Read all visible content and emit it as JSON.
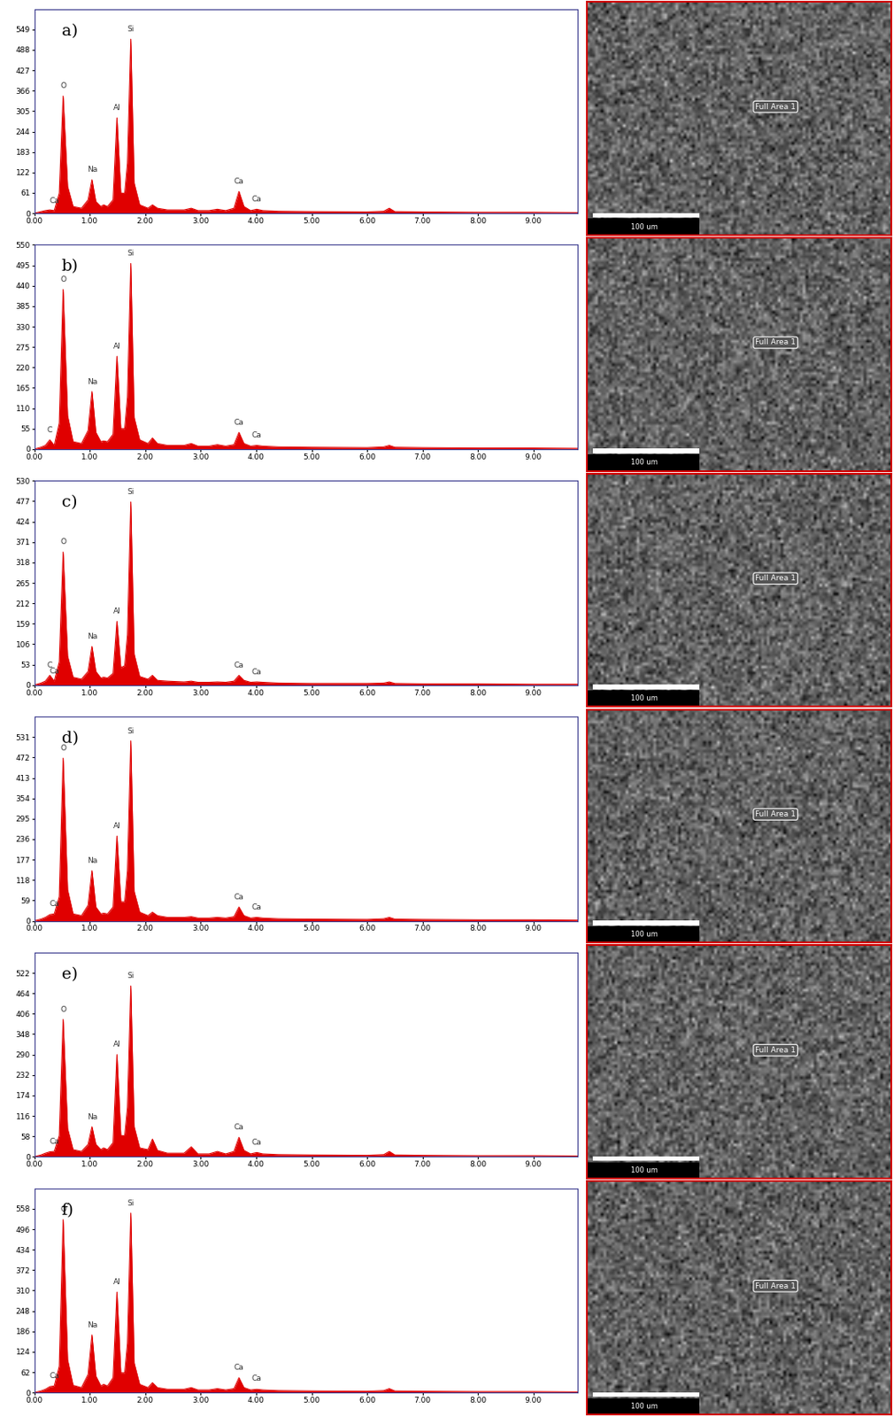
{
  "chart_data": [
    {
      "type": "area",
      "title": "a)",
      "color": "#e00000",
      "x": [
        0.0,
        0.12,
        0.2,
        0.28,
        0.36,
        0.45,
        0.52,
        0.6,
        0.7,
        0.85,
        0.97,
        1.04,
        1.11,
        1.2,
        1.25,
        1.32,
        1.42,
        1.49,
        1.56,
        1.63,
        1.68,
        1.74,
        1.8,
        1.9,
        2.05,
        2.13,
        2.22,
        2.4,
        2.7,
        2.83,
        2.95,
        3.15,
        3.3,
        3.45,
        3.6,
        3.69,
        3.78,
        3.9,
        4.01,
        4.12,
        4.4,
        5.0,
        6.0,
        6.3,
        6.4,
        6.5,
        7.0,
        8.0,
        9.0,
        9.8
      ],
      "values": [
        0,
        5,
        8,
        10,
        8,
        60,
        350,
        80,
        20,
        15,
        40,
        100,
        35,
        20,
        25,
        20,
        40,
        285,
        60,
        60,
        150,
        520,
        90,
        25,
        15,
        25,
        15,
        10,
        10,
        15,
        8,
        8,
        12,
        8,
        15,
        65,
        20,
        8,
        12,
        8,
        6,
        5,
        4,
        6,
        15,
        5,
        4,
        3,
        3,
        2
      ],
      "peaks": [
        {
          "label": "Ca",
          "x": 0.36,
          "value": 8
        },
        {
          "label": "O",
          "x": 0.52,
          "value": 350
        },
        {
          "label": "Na",
          "x": 1.04,
          "value": 100
        },
        {
          "label": "Al",
          "x": 1.49,
          "value": 285
        },
        {
          "label": "Si",
          "x": 1.74,
          "value": 520
        },
        {
          "label": "Ca",
          "x": 3.69,
          "value": 65
        },
        {
          "label": "Ca",
          "x": 4.01,
          "value": 12
        }
      ],
      "xlim": [
        0,
        9.8
      ],
      "ylim": [
        0,
        610
      ],
      "xticks": [
        {
          "value": 0,
          "label": "0.00"
        },
        {
          "value": 1,
          "label": "1.00"
        },
        {
          "value": 2,
          "label": "2.00"
        },
        {
          "value": 3,
          "label": "3.00"
        },
        {
          "value": 4,
          "label": "4.00"
        },
        {
          "value": 5,
          "label": "5.00"
        },
        {
          "value": 6,
          "label": "6.00"
        },
        {
          "value": 7,
          "label": "7.00"
        },
        {
          "value": 8,
          "label": "8.00"
        },
        {
          "value": 9,
          "label": "9.00"
        }
      ],
      "yticks": [
        0,
        61,
        122,
        183,
        244,
        305,
        366,
        427,
        488,
        549
      ]
    },
    {
      "type": "area",
      "title": "b)",
      "color": "#e00000",
      "x": [
        0.0,
        0.12,
        0.2,
        0.28,
        0.36,
        0.45,
        0.52,
        0.6,
        0.7,
        0.85,
        0.97,
        1.04,
        1.11,
        1.2,
        1.25,
        1.32,
        1.42,
        1.49,
        1.56,
        1.63,
        1.68,
        1.74,
        1.8,
        1.9,
        2.05,
        2.13,
        2.22,
        2.4,
        2.7,
        2.83,
        2.95,
        3.15,
        3.3,
        3.45,
        3.6,
        3.69,
        3.78,
        3.9,
        4.01,
        4.12,
        4.4,
        5.0,
        6.0,
        6.3,
        6.4,
        6.5,
        7.0,
        8.0,
        9.0,
        9.8
      ],
      "values": [
        0,
        5,
        10,
        25,
        10,
        70,
        430,
        90,
        20,
        15,
        50,
        155,
        45,
        20,
        22,
        20,
        40,
        250,
        55,
        55,
        140,
        500,
        85,
        25,
        15,
        30,
        15,
        10,
        10,
        15,
        8,
        8,
        12,
        8,
        12,
        45,
        15,
        8,
        10,
        8,
        6,
        5,
        4,
        6,
        10,
        5,
        4,
        3,
        3,
        2
      ],
      "peaks": [
        {
          "label": "C",
          "x": 0.28,
          "value": 25
        },
        {
          "label": "O",
          "x": 0.52,
          "value": 430
        },
        {
          "label": "Na",
          "x": 1.04,
          "value": 155
        },
        {
          "label": "Al",
          "x": 1.49,
          "value": 250
        },
        {
          "label": "Si",
          "x": 1.74,
          "value": 500
        },
        {
          "label": "Ca",
          "x": 3.69,
          "value": 45
        },
        {
          "label": "Ca",
          "x": 4.01,
          "value": 10
        }
      ],
      "xlim": [
        0,
        9.8
      ],
      "ylim": [
        0,
        550
      ],
      "xticks": [
        {
          "value": 0,
          "label": "0.00"
        },
        {
          "value": 1,
          "label": "1.00"
        },
        {
          "value": 2,
          "label": "2.00"
        },
        {
          "value": 3,
          "label": "3.00"
        },
        {
          "value": 4,
          "label": "4.00"
        },
        {
          "value": 5,
          "label": "5.00"
        },
        {
          "value": 6,
          "label": "6.00"
        },
        {
          "value": 7,
          "label": "7.00"
        },
        {
          "value": 8,
          "label": "8.00"
        },
        {
          "value": 9,
          "label": "9.00"
        }
      ],
      "yticks": [
        0,
        55,
        110,
        165,
        220,
        275,
        330,
        385,
        440,
        495,
        550
      ]
    },
    {
      "type": "area",
      "title": "c)",
      "color": "#e00000",
      "x": [
        0.0,
        0.12,
        0.2,
        0.28,
        0.36,
        0.45,
        0.52,
        0.6,
        0.7,
        0.85,
        0.97,
        1.04,
        1.11,
        1.2,
        1.25,
        1.32,
        1.42,
        1.49,
        1.56,
        1.63,
        1.68,
        1.74,
        1.8,
        1.9,
        2.05,
        2.13,
        2.22,
        2.4,
        2.7,
        2.83,
        2.95,
        3.15,
        3.3,
        3.45,
        3.6,
        3.69,
        3.78,
        3.9,
        4.01,
        4.12,
        4.4,
        5.0,
        6.0,
        6.3,
        6.4,
        6.5,
        7.0,
        8.0,
        9.0,
        9.8
      ],
      "values": [
        0,
        5,
        10,
        25,
        10,
        60,
        345,
        75,
        20,
        15,
        35,
        100,
        35,
        18,
        20,
        18,
        30,
        165,
        45,
        50,
        130,
        475,
        80,
        22,
        15,
        25,
        12,
        10,
        8,
        10,
        7,
        7,
        8,
        7,
        10,
        25,
        12,
        7,
        8,
        7,
        5,
        4,
        4,
        5,
        8,
        4,
        3,
        3,
        2,
        2
      ],
      "peaks": [
        {
          "label": "C",
          "x": 0.28,
          "value": 25
        },
        {
          "label": "Ca",
          "x": 0.36,
          "value": 10
        },
        {
          "label": "O",
          "x": 0.52,
          "value": 345
        },
        {
          "label": "Na",
          "x": 1.04,
          "value": 100
        },
        {
          "label": "Al",
          "x": 1.49,
          "value": 165
        },
        {
          "label": "Si",
          "x": 1.74,
          "value": 475
        },
        {
          "label": "Ca",
          "x": 3.69,
          "value": 25
        },
        {
          "label": "Ca",
          "x": 4.01,
          "value": 8
        }
      ],
      "xlim": [
        0,
        9.8
      ],
      "ylim": [
        0,
        530
      ],
      "xticks": [
        {
          "value": 0,
          "label": "0.00"
        },
        {
          "value": 1,
          "label": "1.00"
        },
        {
          "value": 2,
          "label": "2.00"
        },
        {
          "value": 3,
          "label": "3.00"
        },
        {
          "value": 4,
          "label": "4.00"
        },
        {
          "value": 5,
          "label": "5.00"
        },
        {
          "value": 6,
          "label": "6.00"
        },
        {
          "value": 7,
          "label": "7.00"
        },
        {
          "value": 8,
          "label": "8.00"
        },
        {
          "value": 9,
          "label": "9.00"
        }
      ],
      "yticks": [
        0,
        53,
        106,
        159,
        212,
        265,
        318,
        371,
        424,
        477,
        530
      ]
    },
    {
      "type": "area",
      "title": "d)",
      "color": "#e00000",
      "x": [
        0.0,
        0.12,
        0.2,
        0.28,
        0.36,
        0.45,
        0.52,
        0.6,
        0.7,
        0.85,
        0.97,
        1.04,
        1.11,
        1.2,
        1.25,
        1.32,
        1.42,
        1.49,
        1.56,
        1.63,
        1.68,
        1.74,
        1.8,
        1.9,
        2.05,
        2.13,
        2.22,
        2.4,
        2.7,
        2.83,
        2.95,
        3.15,
        3.3,
        3.45,
        3.6,
        3.69,
        3.78,
        3.9,
        4.01,
        4.12,
        4.4,
        5.0,
        6.0,
        6.3,
        6.4,
        6.5,
        7.0,
        8.0,
        9.0,
        9.8
      ],
      "values": [
        0,
        5,
        10,
        18,
        20,
        70,
        470,
        90,
        20,
        15,
        45,
        145,
        40,
        20,
        22,
        20,
        40,
        245,
        55,
        55,
        145,
        520,
        85,
        25,
        15,
        25,
        15,
        10,
        10,
        12,
        8,
        8,
        10,
        8,
        12,
        40,
        15,
        8,
        10,
        8,
        6,
        5,
        4,
        6,
        10,
        5,
        4,
        3,
        3,
        2
      ],
      "peaks": [
        {
          "label": "Ca",
          "x": 0.36,
          "value": 20
        },
        {
          "label": "O",
          "x": 0.52,
          "value": 470
        },
        {
          "label": "Na",
          "x": 1.04,
          "value": 145
        },
        {
          "label": "Al",
          "x": 1.49,
          "value": 245
        },
        {
          "label": "Si",
          "x": 1.74,
          "value": 520
        },
        {
          "label": "Ca",
          "x": 3.69,
          "value": 40
        },
        {
          "label": "Ca",
          "x": 4.01,
          "value": 10
        }
      ],
      "xlim": [
        0,
        9.8
      ],
      "ylim": [
        0,
        590
      ],
      "xticks": [
        {
          "value": 0,
          "label": "0.00"
        },
        {
          "value": 1,
          "label": "1.00"
        },
        {
          "value": 2,
          "label": "2.00"
        },
        {
          "value": 3,
          "label": "3.00"
        },
        {
          "value": 4,
          "label": "4.00"
        },
        {
          "value": 5,
          "label": "5.00"
        },
        {
          "value": 6,
          "label": "6.00"
        },
        {
          "value": 7,
          "label": "7.00"
        },
        {
          "value": 8,
          "label": "8.00"
        },
        {
          "value": 9,
          "label": "9.00"
        }
      ],
      "yticks": [
        0,
        59,
        118,
        177,
        236,
        295,
        354,
        413,
        472,
        531
      ]
    },
    {
      "type": "area",
      "title": "e)",
      "color": "#e00000",
      "x": [
        0.0,
        0.12,
        0.2,
        0.28,
        0.36,
        0.45,
        0.52,
        0.6,
        0.7,
        0.85,
        0.97,
        1.04,
        1.11,
        1.2,
        1.25,
        1.32,
        1.42,
        1.49,
        1.56,
        1.63,
        1.68,
        1.74,
        1.8,
        1.9,
        2.05,
        2.13,
        2.22,
        2.4,
        2.7,
        2.83,
        2.95,
        3.15,
        3.3,
        3.45,
        3.6,
        3.69,
        3.78,
        3.9,
        4.01,
        4.12,
        4.4,
        5.0,
        6.0,
        6.3,
        6.4,
        6.5,
        7.0,
        8.0,
        9.0,
        9.8
      ],
      "values": [
        0,
        5,
        10,
        14,
        15,
        60,
        390,
        80,
        20,
        15,
        35,
        85,
        35,
        20,
        25,
        20,
        40,
        290,
        60,
        60,
        140,
        485,
        85,
        25,
        20,
        50,
        18,
        10,
        10,
        28,
        8,
        8,
        15,
        8,
        15,
        55,
        18,
        8,
        12,
        8,
        6,
        5,
        4,
        6,
        15,
        5,
        4,
        3,
        3,
        2
      ],
      "peaks": [
        {
          "label": "Ca",
          "x": 0.36,
          "value": 15
        },
        {
          "label": "O",
          "x": 0.52,
          "value": 390
        },
        {
          "label": "Na",
          "x": 1.04,
          "value": 85
        },
        {
          "label": "Al",
          "x": 1.49,
          "value": 290
        },
        {
          "label": "Si",
          "x": 1.74,
          "value": 485
        },
        {
          "label": "Ca",
          "x": 3.69,
          "value": 55
        },
        {
          "label": "Ca",
          "x": 4.01,
          "value": 12
        }
      ],
      "xlim": [
        0,
        9.8
      ],
      "ylim": [
        0,
        580
      ],
      "xticks": [
        {
          "value": 0,
          "label": "0.00"
        },
        {
          "value": 1,
          "label": "1.00"
        },
        {
          "value": 2,
          "label": "2.00"
        },
        {
          "value": 3,
          "label": "3.00"
        },
        {
          "value": 4,
          "label": "4.00"
        },
        {
          "value": 5,
          "label": "5.00"
        },
        {
          "value": 6,
          "label": "6.00"
        },
        {
          "value": 7,
          "label": "7.00"
        },
        {
          "value": 8,
          "label": "8.00"
        },
        {
          "value": 9,
          "label": "9.00"
        }
      ],
      "yticks": [
        0,
        58,
        116,
        174,
        232,
        290,
        348,
        406,
        464,
        522
      ]
    },
    {
      "type": "area",
      "title": "f)",
      "color": "#e00000",
      "x": [
        0.0,
        0.12,
        0.2,
        0.28,
        0.36,
        0.45,
        0.52,
        0.6,
        0.7,
        0.85,
        0.97,
        1.04,
        1.11,
        1.2,
        1.25,
        1.32,
        1.42,
        1.49,
        1.56,
        1.63,
        1.68,
        1.74,
        1.8,
        1.9,
        2.05,
        2.13,
        2.22,
        2.4,
        2.7,
        2.83,
        2.95,
        3.15,
        3.3,
        3.45,
        3.6,
        3.69,
        3.78,
        3.9,
        4.01,
        4.12,
        4.4,
        5.0,
        6.0,
        6.3,
        6.4,
        6.5,
        7.0,
        8.0,
        9.0,
        9.8
      ],
      "values": [
        0,
        5,
        10,
        18,
        20,
        80,
        525,
        100,
        22,
        15,
        55,
        175,
        50,
        20,
        25,
        20,
        45,
        305,
        60,
        60,
        150,
        545,
        90,
        25,
        15,
        30,
        15,
        10,
        10,
        15,
        8,
        8,
        12,
        8,
        12,
        45,
        15,
        8,
        10,
        8,
        6,
        5,
        4,
        6,
        12,
        5,
        4,
        3,
        3,
        2
      ],
      "peaks": [
        {
          "label": "Ca",
          "x": 0.36,
          "value": 20
        },
        {
          "label": "O",
          "x": 0.52,
          "value": 525
        },
        {
          "label": "Na",
          "x": 1.04,
          "value": 175
        },
        {
          "label": "Al",
          "x": 1.49,
          "value": 305
        },
        {
          "label": "Si",
          "x": 1.74,
          "value": 545
        },
        {
          "label": "Ca",
          "x": 3.69,
          "value": 45
        },
        {
          "label": "Ca",
          "x": 4.01,
          "value": 12
        }
      ],
      "xlim": [
        0,
        9.8
      ],
      "ylim": [
        0,
        620
      ],
      "xticks": [
        {
          "value": 0,
          "label": "0.00"
        },
        {
          "value": 1,
          "label": "1.00"
        },
        {
          "value": 2,
          "label": "2.00"
        },
        {
          "value": 3,
          "label": "3.00"
        },
        {
          "value": 4,
          "label": "4.00"
        },
        {
          "value": 5,
          "label": "5.00"
        },
        {
          "value": 6,
          "label": "6.00"
        },
        {
          "value": 7,
          "label": "7.00"
        },
        {
          "value": 8,
          "label": "8.00"
        },
        {
          "value": 9,
          "label": "9.00"
        }
      ],
      "yticks": [
        0,
        62,
        124,
        186,
        248,
        310,
        372,
        434,
        496,
        558
      ]
    }
  ],
  "images": [
    {
      "area_label": "Full Area 1",
      "scale_bar": "100 um"
    },
    {
      "area_label": "Full Area 1",
      "scale_bar": "100 um"
    },
    {
      "area_label": "Full Area 1",
      "scale_bar": "100 um"
    },
    {
      "area_label": "Full Area 1",
      "scale_bar": "100 um"
    },
    {
      "area_label": "Full Area 1",
      "scale_bar": "100 um"
    },
    {
      "area_label": "Full Area 1",
      "scale_bar": "100 um"
    }
  ]
}
